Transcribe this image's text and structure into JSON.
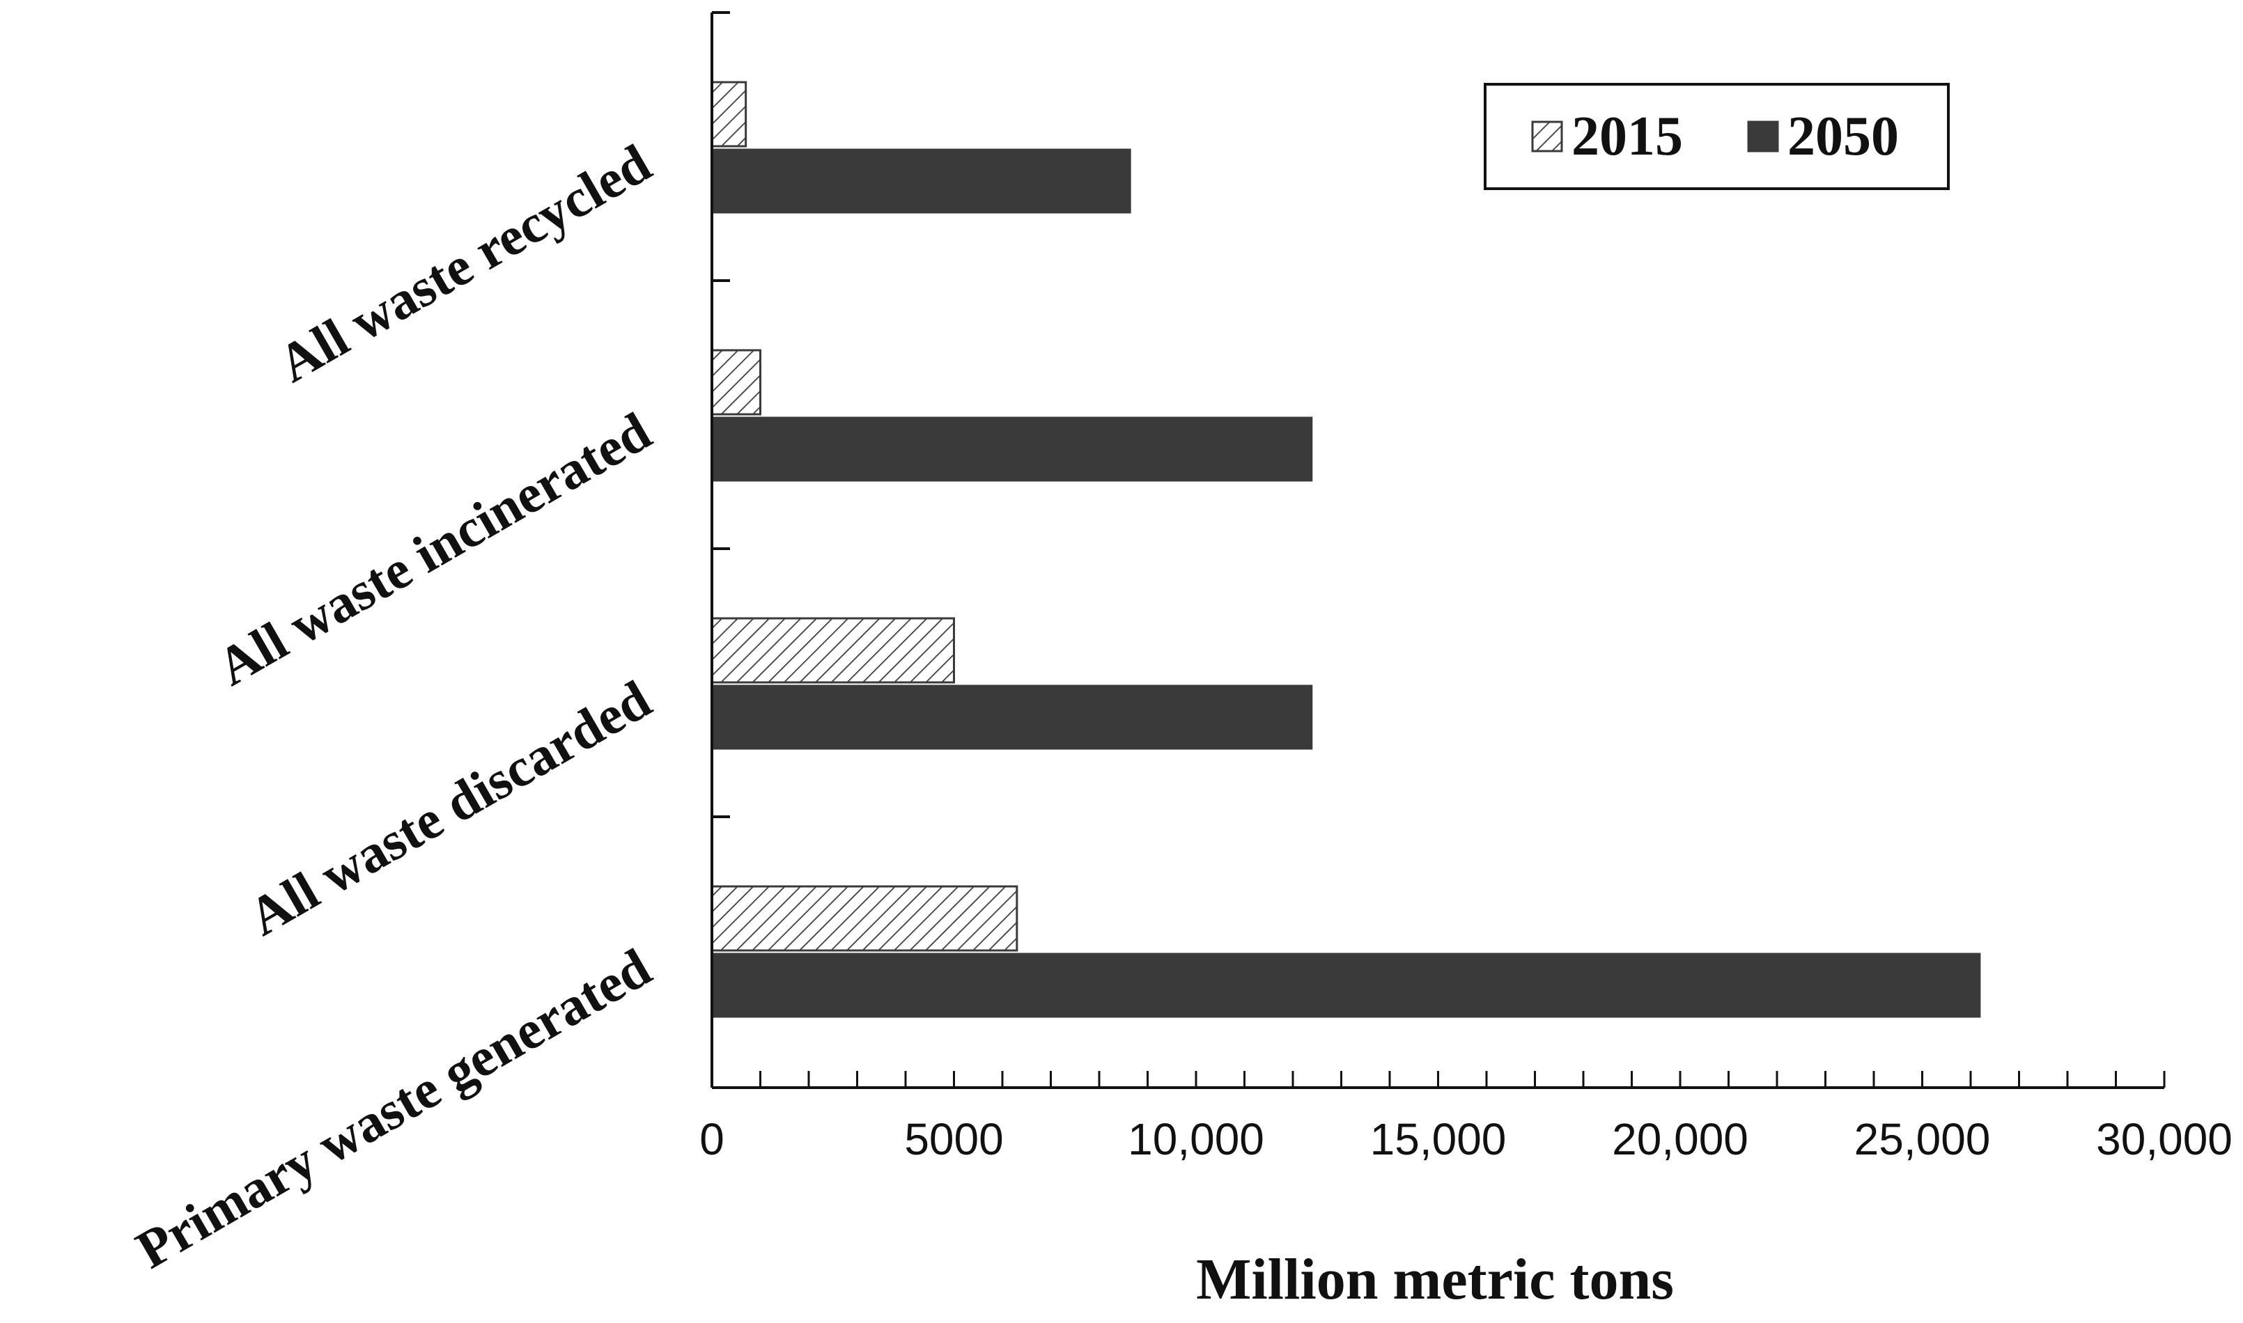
{
  "chart_data": {
    "type": "bar",
    "orientation": "horizontal",
    "categories": [
      "All waste recycled",
      "All waste incinerated",
      "All waste discarded",
      "Primary waste generated"
    ],
    "series": [
      {
        "name": "2015",
        "values": [
          700,
          1000,
          5000,
          6300
        ],
        "fill": "hatch",
        "color": "#ffffff",
        "stroke": "#3a3a3a"
      },
      {
        "name": "2050",
        "values": [
          8650,
          12400,
          12400,
          26200
        ],
        "fill": "solid",
        "color": "#3a3a3a"
      }
    ],
    "xlabel": "Million metric tons",
    "xlim": [
      0,
      30000
    ],
    "xticks": [
      {
        "value": 0,
        "label": "0"
      },
      {
        "value": 5000,
        "label": "5000"
      },
      {
        "value": 10000,
        "label": "10,000"
      },
      {
        "value": 15000,
        "label": "15,000"
      },
      {
        "value": 20000,
        "label": "20,000"
      },
      {
        "value": 25000,
        "label": "25,000"
      },
      {
        "value": 30000,
        "label": "30,000"
      }
    ],
    "minor_tick_step": 1000,
    "grid": false,
    "legend": {
      "position": "top-right",
      "entries": [
        "2015",
        "2050"
      ]
    }
  }
}
